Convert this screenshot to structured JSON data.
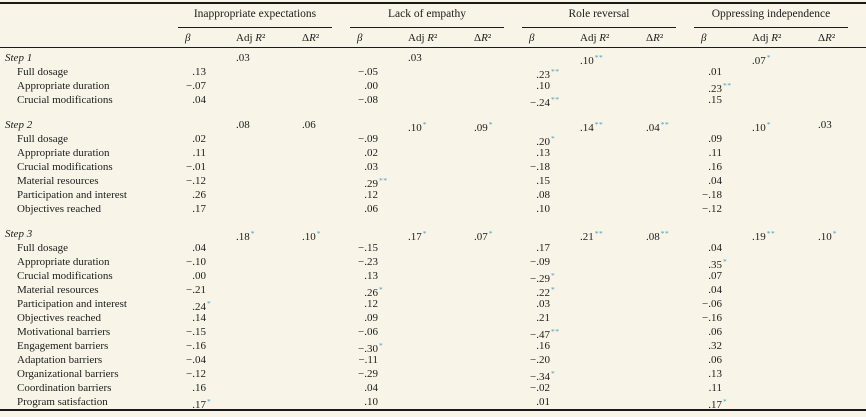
{
  "page": {
    "background": "#f8f4e7",
    "text_color": "#1c1c1c",
    "rule_color": "#1a1a1a",
    "significance_color": "#3f9dbf"
  },
  "table": {
    "groups": [
      "Inappropriate expectations",
      "Lack of empathy",
      "Role reversal",
      "Oppressing independence"
    ],
    "columns": [
      "β",
      "Adj R²",
      "ΔR²"
    ],
    "sections": [
      {
        "label": "Step 1",
        "stats": [
          {
            "adj": ".03",
            "delta": ""
          },
          {
            "adj": ".03",
            "delta": ""
          },
          {
            "adj": ".10**",
            "delta": ""
          },
          {
            "adj": ".07*",
            "delta": ""
          }
        ],
        "rows": [
          {
            "label": "Full dosage",
            "beta": [
              ".13",
              "−.05",
              ".23**",
              ".01"
            ]
          },
          {
            "label": "Appropriate duration",
            "beta": [
              "−.07",
              ".00",
              ".10",
              ".23**"
            ]
          },
          {
            "label": "Crucial modifications",
            "beta": [
              ".04",
              "−.08",
              "−.24**",
              ".15"
            ]
          }
        ]
      },
      {
        "label": "Step 2",
        "stats": [
          {
            "adj": ".08",
            "delta": ".06"
          },
          {
            "adj": ".10*",
            "delta": ".09*"
          },
          {
            "adj": ".14**",
            "delta": ".04**"
          },
          {
            "adj": ".10*",
            "delta": ".03"
          }
        ],
        "rows": [
          {
            "label": "Full dosage",
            "beta": [
              ".02",
              "−.09",
              ".20*",
              ".09"
            ]
          },
          {
            "label": "Appropriate duration",
            "beta": [
              ".11",
              ".02",
              ".13",
              ".11"
            ]
          },
          {
            "label": "Crucial modifications",
            "beta": [
              "−.01",
              ".03",
              "−.18",
              ".16"
            ]
          },
          {
            "label": "Material resources",
            "beta": [
              "−.12",
              ".29**",
              ".15",
              ".04"
            ]
          },
          {
            "label": "Participation and interest",
            "beta": [
              ".26",
              ".12",
              ".08",
              "−.18"
            ]
          },
          {
            "label": "Objectives reached",
            "beta": [
              ".17",
              ".06",
              ".10",
              "−.12"
            ]
          }
        ]
      },
      {
        "label": "Step 3",
        "stats": [
          {
            "adj": ".18*",
            "delta": ".10*"
          },
          {
            "adj": ".17*",
            "delta": ".07*"
          },
          {
            "adj": ".21**",
            "delta": ".08**"
          },
          {
            "adj": ".19**",
            "delta": ".10*"
          }
        ],
        "rows": [
          {
            "label": "Full dosage",
            "beta": [
              ".04",
              "−.15",
              ".17",
              ".04"
            ]
          },
          {
            "label": "Appropriate duration",
            "beta": [
              "−.10",
              "−.23",
              "−.09",
              ".35*"
            ]
          },
          {
            "label": "Crucial modifications",
            "beta": [
              ".00",
              ".13",
              "−.29*",
              ".07"
            ]
          },
          {
            "label": "Material resources",
            "beta": [
              "−.21",
              ".26*",
              ".22*",
              ".04"
            ]
          },
          {
            "label": "Participation and interest",
            "beta": [
              ".24*",
              ".12",
              ".03",
              "−.06"
            ]
          },
          {
            "label": "Objectives reached",
            "beta": [
              ".14",
              ".09",
              ".21",
              "−.16"
            ]
          },
          {
            "label": "Motivational barriers",
            "beta": [
              "−.15",
              "−.06",
              "−.47**",
              ".06"
            ]
          },
          {
            "label": "Engagement barriers",
            "beta": [
              "−.16",
              "−.30*",
              ".16",
              ".32"
            ]
          },
          {
            "label": "Adaptation barriers",
            "beta": [
              "−.04",
              "−.11",
              "−.20",
              ".06"
            ]
          },
          {
            "label": "Organizational barriers",
            "beta": [
              "−.12",
              "−.29",
              "−.34*",
              ".13"
            ]
          },
          {
            "label": "Coordination barriers",
            "beta": [
              ".16",
              ".04",
              "−.02",
              ".11"
            ]
          },
          {
            "label": "Program satisfaction",
            "beta": [
              ".17*",
              ".10",
              ".01",
              ".17*"
            ]
          }
        ]
      }
    ]
  }
}
